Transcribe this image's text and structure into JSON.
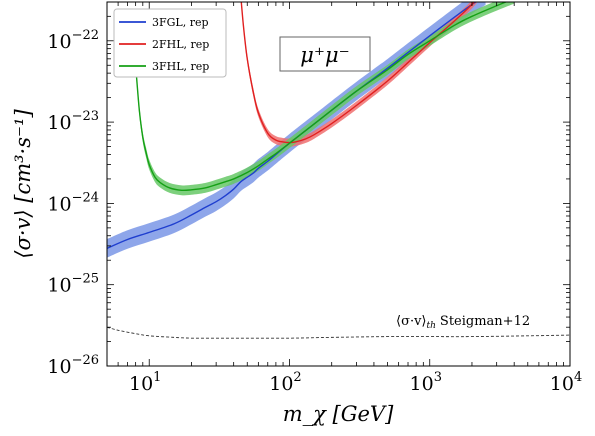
{
  "chart_data": {
    "type": "line",
    "xscale": "log",
    "yscale": "log",
    "xlim": [
      5,
      10000
    ],
    "ylim": [
      1e-26,
      3e-22
    ],
    "xticks": [
      {
        "value": 10,
        "label": "10",
        "exp": "1"
      },
      {
        "value": 100,
        "label": "10",
        "exp": "2"
      },
      {
        "value": 1000,
        "label": "10",
        "exp": "3"
      },
      {
        "value": 10000,
        "label": "10",
        "exp": "4"
      }
    ],
    "yticks": [
      {
        "value": 1e-26,
        "label": "10",
        "exp": "−26"
      },
      {
        "value": 1e-25,
        "label": "10",
        "exp": "−25"
      },
      {
        "value": 1e-24,
        "label": "10",
        "exp": "−24"
      },
      {
        "value": 1e-23,
        "label": "10",
        "exp": "−23"
      },
      {
        "value": 1e-22,
        "label": "10",
        "exp": "−22"
      }
    ],
    "xlabel": "m_χ [GeV]",
    "ylabel": "⟨σ·v⟩ [cm³·s⁻¹]",
    "channel_label": "μ⁺μ⁻",
    "grid": false,
    "legend_position": "top-left",
    "series": [
      {
        "name": "3FGL, rep",
        "color": "#1f3fcf",
        "band_color": "#7a96e6",
        "band_factor": 1.3,
        "x": [
          5,
          7,
          10,
          15,
          20,
          25,
          30,
          35,
          40,
          45,
          50,
          55,
          60,
          70,
          80,
          100,
          150,
          200,
          300,
          500,
          700,
          1000,
          1500,
          2000,
          2500
        ],
        "y": [
          2.8e-25,
          3.6e-25,
          4.4e-25,
          5.6e-25,
          7.2e-25,
          8.9e-25,
          1.05e-24,
          1.25e-24,
          1.5e-24,
          1.85e-24,
          2.1e-24,
          2.35e-24,
          2.7e-24,
          3.3e-24,
          4e-24,
          5.5e-24,
          9.5e-24,
          1.4e-23,
          2.4e-23,
          4.6e-23,
          7.2e-23,
          1.15e-22,
          1.95e-22,
          2.8e-22,
          3.6e-22
        ]
      },
      {
        "name": "2FHL, rep",
        "color": "#e02020",
        "band_color": "#f07070",
        "band_factor": 1.12,
        "x": [
          45,
          47,
          50,
          55,
          60,
          70,
          80,
          90,
          100,
          110,
          130,
          150,
          200,
          300,
          500,
          700,
          1000,
          1500,
          2000,
          2200
        ],
        "y": [
          3.5e-22,
          1.5e-22,
          6e-23,
          2.4e-23,
          1.3e-23,
          7.3e-24,
          6e-24,
          5.7e-24,
          5.6e-24,
          5.7e-24,
          6.2e-24,
          7e-24,
          9.6e-24,
          1.6e-23,
          3.2e-23,
          5.4e-23,
          9.5e-23,
          1.75e-22,
          2.8e-22,
          3.4e-22
        ]
      },
      {
        "name": "3FHL, rep",
        "color": "#15a015",
        "band_color": "#66c866",
        "band_factor": 1.15,
        "x": [
          8,
          8.5,
          9,
          9.5,
          10,
          11,
          12,
          14,
          17,
          20,
          25,
          30,
          35,
          40,
          50,
          60,
          70,
          80,
          100,
          150,
          200,
          300,
          500,
          700,
          1000,
          1500,
          2000,
          3000,
          4000
        ],
        "y": [
          5e-23,
          1.4e-23,
          6.5e-24,
          4.2e-24,
          3e-24,
          2.1e-24,
          1.8e-24,
          1.55e-24,
          1.45e-24,
          1.47e-24,
          1.55e-24,
          1.7e-24,
          1.85e-24,
          2e-24,
          2.4e-24,
          2.9e-24,
          3.5e-24,
          4.1e-24,
          5.5e-24,
          9.5e-24,
          1.4e-23,
          2.4e-23,
          4.4e-23,
          6.8e-23,
          1e-22,
          1.55e-22,
          2e-22,
          2.7e-22,
          3.3e-22
        ]
      }
    ],
    "reference_line": {
      "name": "⟨σ·v⟩th Steigman+12",
      "label_main": "⟨σ·v⟩",
      "label_sub": "th",
      "label_rest": "Steigman+12",
      "color": "#333333",
      "x": [
        5,
        6,
        8,
        10,
        15,
        20,
        30,
        50,
        100,
        200,
        500,
        1000,
        2000,
        5000,
        10000
      ],
      "y": [
        3e-26,
        2.75e-26,
        2.5e-26,
        2.35e-26,
        2.25e-26,
        2.2e-26,
        2.2e-26,
        2.2e-26,
        2.2e-26,
        2.25e-26,
        2.3e-26,
        2.3e-26,
        2.3e-26,
        2.35e-26,
        2.4e-26
      ]
    }
  }
}
